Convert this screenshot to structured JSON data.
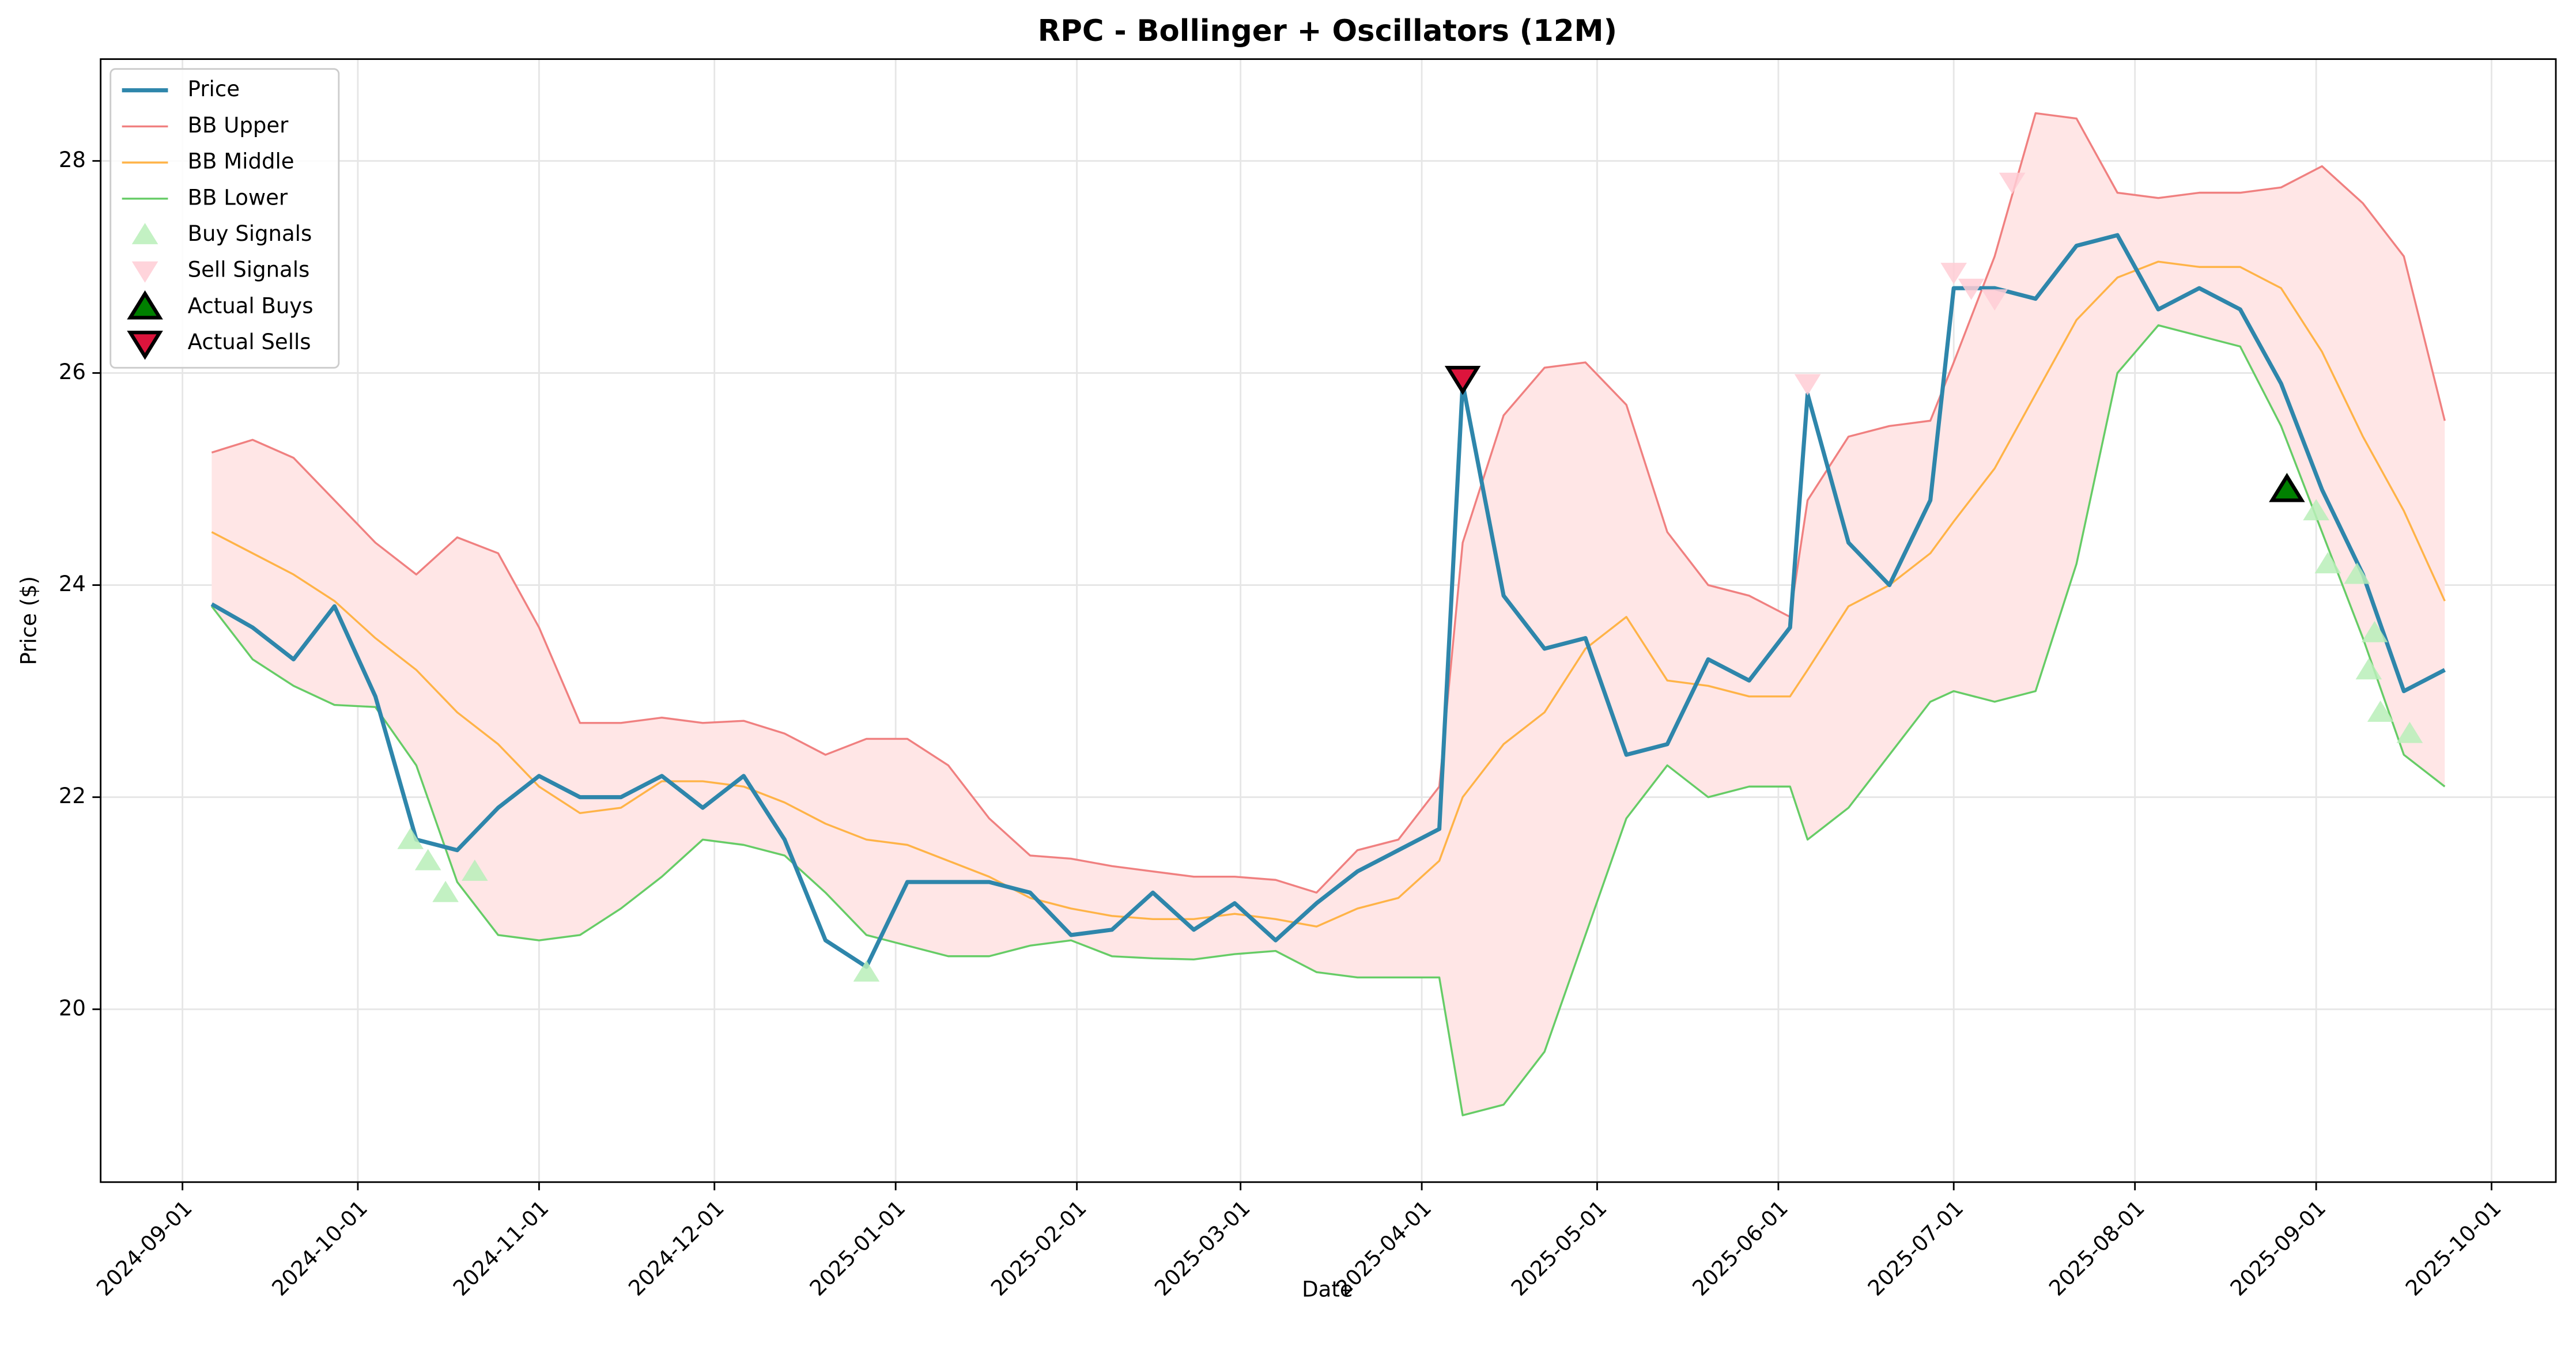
{
  "chart_data": {
    "type": "line",
    "title": "RPC - Bollinger + Oscillators (12M)",
    "xlabel": "Date",
    "ylabel": "Price ($)",
    "xlim": [
      "2024-08-18",
      "2025-10-12"
    ],
    "ylim": [
      18.37,
      28.96
    ],
    "xticks": [
      "2024-09-01",
      "2024-10-01",
      "2024-11-01",
      "2024-12-01",
      "2025-01-01",
      "2025-02-01",
      "2025-03-01",
      "2025-04-01",
      "2025-05-01",
      "2025-06-01",
      "2025-07-01",
      "2025-08-01",
      "2025-09-01",
      "2025-10-01"
    ],
    "yticks": [
      20,
      22,
      24,
      26,
      28
    ],
    "grid": true,
    "legend": "upper left",
    "fill_color": "#ffe6e6",
    "x": [
      "2024-09-06",
      "2024-09-13",
      "2024-09-20",
      "2024-09-27",
      "2024-10-04",
      "2024-10-11",
      "2024-10-18",
      "2024-10-25",
      "2024-11-01",
      "2024-11-08",
      "2024-11-15",
      "2024-11-22",
      "2024-11-29",
      "2024-12-06",
      "2024-12-13",
      "2024-12-20",
      "2024-12-27",
      "2025-01-03",
      "2025-01-10",
      "2025-01-17",
      "2025-01-24",
      "2025-01-31",
      "2025-02-07",
      "2025-02-14",
      "2025-02-21",
      "2025-02-28",
      "2025-03-07",
      "2025-03-14",
      "2025-03-21",
      "2025-03-28",
      "2025-04-04",
      "2025-04-08",
      "2025-04-15",
      "2025-04-22",
      "2025-04-29",
      "2025-05-06",
      "2025-05-13",
      "2025-05-20",
      "2025-05-27",
      "2025-06-03",
      "2025-06-06",
      "2025-06-13",
      "2025-06-20",
      "2025-06-27",
      "2025-07-01",
      "2025-07-08",
      "2025-07-15",
      "2025-07-22",
      "2025-07-29",
      "2025-08-05",
      "2025-08-12",
      "2025-08-19",
      "2025-08-26",
      "2025-09-02",
      "2025-09-09",
      "2025-09-16",
      "2025-09-23"
    ],
    "series": [
      {
        "name": "Price",
        "color": "#2e86ab",
        "width": 2.5,
        "values": [
          23.82,
          23.6,
          23.3,
          23.8,
          22.95,
          21.6,
          21.5,
          21.9,
          22.2,
          22.0,
          22.0,
          22.2,
          21.9,
          22.2,
          21.6,
          20.65,
          20.4,
          21.2,
          21.2,
          21.2,
          21.1,
          20.7,
          20.75,
          21.1,
          20.75,
          21.0,
          20.65,
          21.0,
          21.3,
          21.5,
          21.7,
          25.9,
          23.9,
          23.4,
          23.5,
          22.4,
          22.5,
          23.3,
          23.1,
          23.6,
          25.8,
          24.4,
          24.0,
          24.8,
          26.8,
          26.8,
          26.7,
          27.2,
          27.3,
          26.6,
          26.8,
          26.6,
          25.9,
          24.9,
          24.1,
          23.0,
          23.2
        ]
      },
      {
        "name": "BB Upper",
        "color": "#f08080",
        "width": 1.2,
        "values": [
          25.25,
          25.37,
          25.2,
          24.8,
          24.4,
          24.1,
          24.45,
          24.3,
          23.6,
          22.7,
          22.7,
          22.75,
          22.7,
          22.72,
          22.6,
          22.4,
          22.55,
          22.55,
          22.3,
          21.8,
          21.45,
          21.42,
          21.35,
          21.3,
          21.25,
          21.25,
          21.22,
          21.1,
          21.5,
          21.6,
          22.1,
          24.4,
          25.6,
          26.05,
          26.1,
          25.7,
          24.5,
          24.0,
          23.9,
          23.7,
          24.8,
          25.4,
          25.5,
          25.55,
          26.1,
          27.1,
          28.45,
          28.4,
          27.7,
          27.65,
          27.7,
          27.7,
          27.75,
          27.95,
          27.6,
          27.1,
          25.55
        ]
      },
      {
        "name": "BB Middle",
        "color": "#ffb347",
        "width": 1.2,
        "values": [
          24.5,
          24.3,
          24.1,
          23.85,
          23.5,
          23.2,
          22.8,
          22.5,
          22.1,
          21.85,
          21.9,
          22.15,
          22.15,
          22.1,
          21.95,
          21.75,
          21.6,
          21.55,
          21.4,
          21.25,
          21.05,
          20.95,
          20.88,
          20.85,
          20.85,
          20.9,
          20.85,
          20.78,
          20.95,
          21.05,
          21.4,
          22.0,
          22.5,
          22.8,
          23.4,
          23.7,
          23.1,
          23.05,
          22.95,
          22.95,
          23.2,
          23.8,
          24.0,
          24.3,
          24.6,
          25.1,
          25.8,
          26.5,
          26.9,
          27.05,
          27.0,
          27.0,
          26.8,
          26.2,
          25.4,
          24.7,
          23.85
        ]
      },
      {
        "name": "BB Lower",
        "color": "#66cc66",
        "width": 1.2,
        "values": [
          23.8,
          23.3,
          23.05,
          22.87,
          22.85,
          22.3,
          21.2,
          20.7,
          20.65,
          20.7,
          20.95,
          21.25,
          21.6,
          21.55,
          21.45,
          21.1,
          20.7,
          20.6,
          20.5,
          20.5,
          20.6,
          20.65,
          20.5,
          20.48,
          20.47,
          20.52,
          20.55,
          20.35,
          20.3,
          20.3,
          20.3,
          19.0,
          19.1,
          19.6,
          20.7,
          21.8,
          22.3,
          22.0,
          22.1,
          22.1,
          21.6,
          21.9,
          22.4,
          22.9,
          23.0,
          22.9,
          23.0,
          24.2,
          26.0,
          26.45,
          26.35,
          26.25,
          25.5,
          24.5,
          23.5,
          22.4,
          22.1
        ]
      }
    ],
    "markers": [
      {
        "name": "Buy Signals",
        "color": "#b8eeb8",
        "edge": "none",
        "shape": "up",
        "size": 8,
        "x": [
          "2024-10-10",
          "2024-10-13",
          "2024-10-16",
          "2024-10-21",
          "2024-12-27",
          "2025-08-27",
          "2025-09-01",
          "2025-09-03",
          "2025-09-08",
          "2025-09-10",
          "2025-09-11",
          "2025-09-12",
          "2025-09-17"
        ],
        "values": [
          21.6,
          21.4,
          21.1,
          21.3,
          20.35,
          24.95,
          24.7,
          24.2,
          24.1,
          23.2,
          23.55,
          22.8,
          22.6
        ]
      },
      {
        "name": "Sell Signals",
        "color": "#ffccd5",
        "edge": "none",
        "shape": "down",
        "size": 8,
        "x": [
          "2025-06-06",
          "2025-07-01",
          "2025-07-04",
          "2025-07-08",
          "2025-07-11"
        ],
        "values": [
          25.9,
          26.95,
          26.8,
          26.7,
          27.8
        ]
      },
      {
        "name": "Actual Buys",
        "color": "#008000",
        "edge": "#000000",
        "shape": "up",
        "size": 9,
        "x": [
          "2025-08-27"
        ],
        "values": [
          24.9
        ]
      },
      {
        "name": "Actual Sells",
        "color": "#dc143c",
        "edge": "#000000",
        "shape": "down",
        "size": 9,
        "x": [
          "2025-04-08"
        ],
        "values": [
          25.95
        ]
      }
    ]
  }
}
